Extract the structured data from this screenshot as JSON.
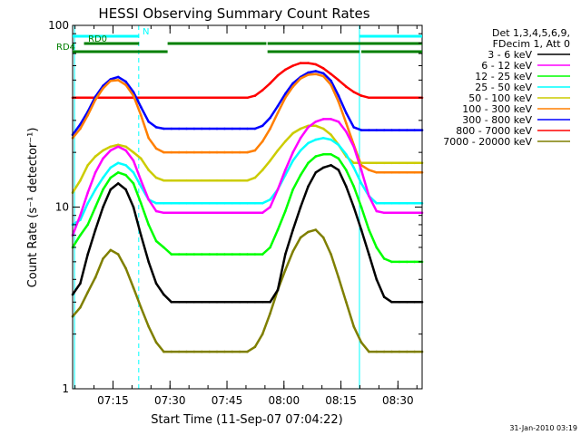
{
  "chart_data": {
    "type": "line",
    "title": "HESSI Observing Summary Count Rates",
    "xlabel": "Start Time (11-Sep-07 07:04:22)",
    "ylabel": "Count Rate (s⁻¹ detector⁻¹)",
    "y_scale": "log",
    "ylim": [
      1,
      100
    ],
    "xlim_minutes": [
      0,
      92
    ],
    "y_ticks": [
      "1",
      "10",
      "100"
    ],
    "x_ticks": [
      {
        "minute": 10.63,
        "label": "07:15"
      },
      {
        "minute": 25.63,
        "label": "07:30"
      },
      {
        "minute": 40.63,
        "label": "07:45"
      },
      {
        "minute": 55.63,
        "label": "08:00"
      },
      {
        "minute": 70.63,
        "label": "08:15"
      },
      {
        "minute": 85.63,
        "label": "08:30"
      }
    ],
    "legend_header": [
      "Det 1,3,4,5,6,9,",
      "FDecim 1, Att 0"
    ],
    "legend_placement": "right",
    "flags": [
      {
        "label": "N",
        "color": "#00ffff",
        "intervals": [
          [
            0,
            17.5
          ],
          [
            75.5,
            92
          ]
        ]
      },
      {
        "label": "RD0",
        "color": "#007f00",
        "intervals": [
          [
            3,
            17.5
          ],
          [
            25,
            51
          ],
          [
            51.3,
            92
          ]
        ]
      },
      {
        "label": "RD4",
        "color": "#007f00",
        "intervals": [
          [
            0,
            25
          ],
          [
            51.3,
            75.5
          ],
          [
            76,
            92
          ]
        ]
      }
    ],
    "vlines": [
      {
        "minute": 0.5,
        "color": "#00ffff",
        "style": "solid"
      },
      {
        "minute": 17.4,
        "color": "#00ffff",
        "style": "dashed"
      },
      {
        "minute": 75.5,
        "color": "#00ffff",
        "style": "solid"
      },
      {
        "minute": 92,
        "color": "#00ffff",
        "style": "dashed"
      }
    ],
    "x": [
      0,
      2,
      4,
      6,
      8,
      10,
      12,
      14,
      16,
      18,
      20,
      22,
      24,
      26,
      28,
      30,
      32,
      34,
      36,
      38,
      40,
      42,
      44,
      46,
      48,
      50,
      52,
      54,
      56,
      58,
      60,
      62,
      64,
      66,
      68,
      70,
      72,
      74,
      76,
      78,
      80,
      82,
      84,
      86,
      88,
      90,
      92
    ],
    "series": [
      {
        "name": "3 - 6 keV",
        "color": "#000000",
        "values": [
          3.3,
          3.8,
          5.5,
          7.5,
          10,
          12.5,
          13.5,
          12.5,
          10,
          7,
          5,
          3.8,
          3.3,
          3,
          3,
          3,
          3,
          3,
          3,
          3,
          3,
          3,
          3,
          3,
          3,
          3,
          3,
          3.5,
          5.5,
          7.5,
          10,
          13,
          15.5,
          16.5,
          17,
          16,
          13,
          10,
          7.5,
          5.5,
          4,
          3.2,
          3,
          3,
          3,
          3,
          3
        ]
      },
      {
        "name": "6 - 12 keV",
        "color": "#ff00ff",
        "values": [
          7,
          9,
          12,
          15.5,
          18.5,
          20.5,
          21.5,
          20.5,
          18,
          14,
          11,
          9.5,
          9.3,
          9.3,
          9.3,
          9.3,
          9.3,
          9.3,
          9.3,
          9.3,
          9.3,
          9.3,
          9.3,
          9.3,
          9.3,
          9.3,
          10,
          12.5,
          16,
          20,
          24,
          27.5,
          29.5,
          30.5,
          30.5,
          29.5,
          26,
          21.5,
          16,
          11.5,
          9.5,
          9.3,
          9.3,
          9.3,
          9.3,
          9.3,
          9.3
        ]
      },
      {
        "name": "12 - 25 keV",
        "color": "#00ff00",
        "values": [
          6,
          7,
          8,
          10,
          12.5,
          14.5,
          15.5,
          15,
          13.5,
          10.5,
          8,
          6.5,
          6,
          5.5,
          5.5,
          5.5,
          5.5,
          5.5,
          5.5,
          5.5,
          5.5,
          5.5,
          5.5,
          5.5,
          5.5,
          5.5,
          6,
          7.5,
          9.5,
          12.5,
          15,
          17.5,
          19,
          19.5,
          19.5,
          18.5,
          16,
          13,
          10,
          7.5,
          6,
          5.2,
          5,
          5,
          5,
          5,
          5
        ]
      },
      {
        "name": "25 - 50 keV",
        "color": "#00ffff",
        "values": [
          8,
          8.5,
          10.5,
          12.5,
          14.5,
          16.5,
          17.5,
          17,
          15.5,
          13,
          11,
          10.5,
          10.5,
          10.5,
          10.5,
          10.5,
          10.5,
          10.5,
          10.5,
          10.5,
          10.5,
          10.5,
          10.5,
          10.5,
          10.5,
          10.5,
          11,
          12.5,
          15,
          18,
          20.5,
          22.5,
          23.5,
          24,
          23.5,
          22,
          19.5,
          16.5,
          13.5,
          11.5,
          10.5,
          10.5,
          10.5,
          10.5,
          10.5,
          10.5,
          10.5
        ]
      },
      {
        "name": "50 - 100 keV",
        "color": "#cccc00",
        "values": [
          12,
          14,
          17,
          19,
          20.5,
          21.5,
          22,
          21.5,
          20,
          18.5,
          16,
          14.5,
          14,
          14,
          14,
          14,
          14,
          14,
          14,
          14,
          14,
          14,
          14,
          14,
          14.5,
          16,
          18,
          20.5,
          23,
          25.5,
          27,
          28,
          28,
          27,
          25,
          22,
          19,
          17.5,
          17.5,
          17.5,
          17.5,
          17.5,
          17.5,
          17.5,
          17.5,
          17.5,
          17.5
        ]
      },
      {
        "name": "100 - 300 keV",
        "color": "#ff7f00",
        "values": [
          24,
          27,
          32,
          39,
          45,
          49.5,
          50,
          47,
          41,
          32,
          24,
          21,
          20,
          20,
          20,
          20,
          20,
          20,
          20,
          20,
          20,
          20,
          20,
          20,
          20.5,
          23,
          27,
          33,
          40,
          46,
          51,
          53.5,
          54,
          52.5,
          47,
          38,
          29,
          22,
          17,
          16,
          15.5,
          15.5,
          15.5,
          15.5,
          15.5,
          15.5,
          15.5
        ]
      },
      {
        "name": "300 - 800 keV",
        "color": "#0000ff",
        "values": [
          25,
          28.5,
          33.5,
          40.5,
          46.5,
          50.5,
          52,
          49,
          43,
          35.5,
          29.5,
          27.5,
          27,
          27,
          27,
          27,
          27,
          27,
          27,
          27,
          27,
          27,
          27,
          27,
          27,
          28,
          31,
          36,
          42,
          48,
          52,
          55,
          56,
          54.5,
          49.5,
          41,
          33,
          27.5,
          26.5,
          26.5,
          26.5,
          26.5,
          26.5,
          26.5,
          26.5,
          26.5,
          26.5
        ]
      },
      {
        "name": "800 - 7000 keV",
        "color": "#ff0000",
        "values": [
          40,
          40,
          40,
          40,
          40,
          40,
          40,
          40,
          40,
          40,
          40,
          40,
          40,
          40,
          40,
          40,
          40,
          40,
          40,
          40,
          40,
          40,
          40,
          40,
          41,
          44,
          48,
          53,
          57,
          60,
          62,
          62,
          61,
          58,
          54,
          50,
          46,
          43,
          41,
          40,
          40,
          40,
          40,
          40,
          40,
          40,
          40
        ]
      },
      {
        "name": "7000 - 20000 keV",
        "color": "#7f7f00",
        "values": [
          2.5,
          2.8,
          3.4,
          4.1,
          5.2,
          5.8,
          5.5,
          4.6,
          3.6,
          2.8,
          2.2,
          1.8,
          1.6,
          1.6,
          1.6,
          1.6,
          1.6,
          1.6,
          1.6,
          1.6,
          1.6,
          1.6,
          1.6,
          1.6,
          1.7,
          2,
          2.6,
          3.5,
          4.5,
          5.7,
          6.8,
          7.3,
          7.5,
          6.8,
          5.5,
          4.1,
          3,
          2.2,
          1.8,
          1.6,
          1.6,
          1.6,
          1.6,
          1.6,
          1.6,
          1.6,
          1.6
        ]
      }
    ]
  },
  "footer_timestamp": "31-Jan-2010 03:19"
}
